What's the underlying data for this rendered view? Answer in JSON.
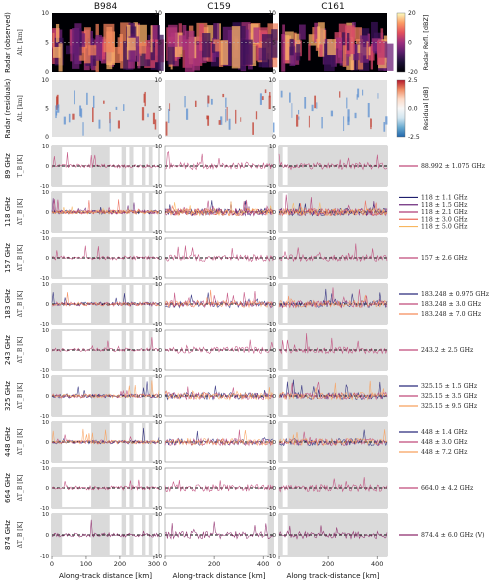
{
  "columns": [
    "B984",
    "C159",
    "C161"
  ],
  "rows": [
    {
      "label": "Radar (observed)",
      "ylabel": "Alt. [km]",
      "kind": "radar"
    },
    {
      "label": "Radar (residuals)",
      "ylabel": "Alt. [km]",
      "kind": "residual"
    },
    {
      "label": "89 GHz",
      "ylabel": "T_B [K]",
      "kind": "tb",
      "legend": [
        {
          "text": "88.992 ± 1.075 GHz",
          "color": "#c04a7b"
        }
      ]
    },
    {
      "label": "118 GHz",
      "ylabel": "ΔT_B [K]",
      "kind": "tb",
      "legend": [
        {
          "text": "118 ± 1.1 GHz",
          "color": "#1f1f6e"
        },
        {
          "text": "118 ± 1.5 GHz",
          "color": "#6e2c7d"
        },
        {
          "text": "118 ± 2.1 GHz",
          "color": "#b13e78"
        },
        {
          "text": "118 ± 3.0 GHz",
          "color": "#ec6a5a"
        },
        {
          "text": "118 ± 5.0 GHz",
          "color": "#f8b65f"
        }
      ]
    },
    {
      "label": "157 GHz",
      "ylabel": "ΔT_B [K]",
      "kind": "tb",
      "legend": [
        {
          "text": "157 ± 2.6 GHz",
          "color": "#c04a7b"
        }
      ]
    },
    {
      "label": "183 GHz",
      "ylabel": "ΔT_B [K]",
      "kind": "tb",
      "legend": [
        {
          "text": "183.248 ± 0.975 GHz",
          "color": "#2b2a7c"
        },
        {
          "text": "183.248 ± 3.0 GHz",
          "color": "#c04a7b"
        },
        {
          "text": "183.248 ± 7.0 GHz",
          "color": "#f58c5b"
        }
      ]
    },
    {
      "label": "243 GHz",
      "ylabel": "ΔT_B [K]",
      "kind": "tb",
      "legend": [
        {
          "text": "243.2 ± 2.5 GHz",
          "color": "#c04a7b"
        }
      ]
    },
    {
      "label": "325 GHz",
      "ylabel": "ΔT_B [K]",
      "kind": "tb",
      "legend": [
        {
          "text": "325.15 ± 1.5 GHz",
          "color": "#2b2a7c"
        },
        {
          "text": "325.15 ± 3.5 GHz",
          "color": "#c04a7b"
        },
        {
          "text": "325.15 ± 9.5 GHz",
          "color": "#f8a15d"
        }
      ]
    },
    {
      "label": "448 GHz",
      "ylabel": "ΔT_B [K]",
      "kind": "tb",
      "legend": [
        {
          "text": "448 ± 1.4 GHz",
          "color": "#2b2a7c"
        },
        {
          "text": "448 ± 3.0 GHz",
          "color": "#c04a7b"
        },
        {
          "text": "448 ± 7.2 GHz",
          "color": "#f8a15d"
        }
      ]
    },
    {
      "label": "664 GHz",
      "ylabel": "ΔT_B [K]",
      "kind": "tb",
      "legend": [
        {
          "text": "664.0 ± 4.2 GHz",
          "color": "#c04a7b"
        }
      ]
    },
    {
      "label": "874 GHz",
      "ylabel": "ΔT_B [K]",
      "kind": "tb",
      "legend": [
        {
          "text": "874.4 ± 6.0 GHz (V)",
          "color": "#8e2b6c"
        }
      ]
    }
  ],
  "x_axes": [
    {
      "label": "Along-track distance [km]",
      "ticks": [
        "0",
        "100",
        "200",
        "300"
      ],
      "xmax": 315
    },
    {
      "label": "Along-track distance [km]",
      "ticks": [
        "0",
        "200",
        "400"
      ],
      "xmax": 440
    },
    {
      "label": "Along track-distance [km]",
      "ticks": [
        "0",
        "200",
        "400"
      ],
      "xmax": 440
    }
  ],
  "radar_yticks": [
    "0",
    "5",
    "10"
  ],
  "tb_yticks": [
    "-10",
    "0",
    "10"
  ],
  "colorbars": [
    {
      "title": "Radar Refl. [dBZ]",
      "ticks": [
        "20",
        "0",
        "-20"
      ],
      "colors": [
        "#fcfdbf",
        "#fc9c65",
        "#e4505c",
        "#9c2e7f",
        "#5b1f6c",
        "#1c1136",
        "#000004"
      ]
    },
    {
      "title": "Residual [dB]",
      "ticks": [
        "2.5",
        "0.0",
        "-2.5"
      ],
      "colors": [
        "#b2182b",
        "#ef8a62",
        "#fddbc7",
        "#f7f7f7",
        "#d1e5f0",
        "#67a9cf",
        "#2166ac"
      ]
    }
  ],
  "shading": [
    [
      [
        0,
        30
      ],
      [
        115,
        170
      ],
      [
        205,
        218
      ],
      [
        228,
        240
      ],
      [
        265,
        275
      ],
      [
        285,
        296
      ]
    ],
    [
      [
        418,
        440
      ]
    ],
    [
      [
        0,
        15
      ],
      [
        35,
        440
      ]
    ]
  ]
}
